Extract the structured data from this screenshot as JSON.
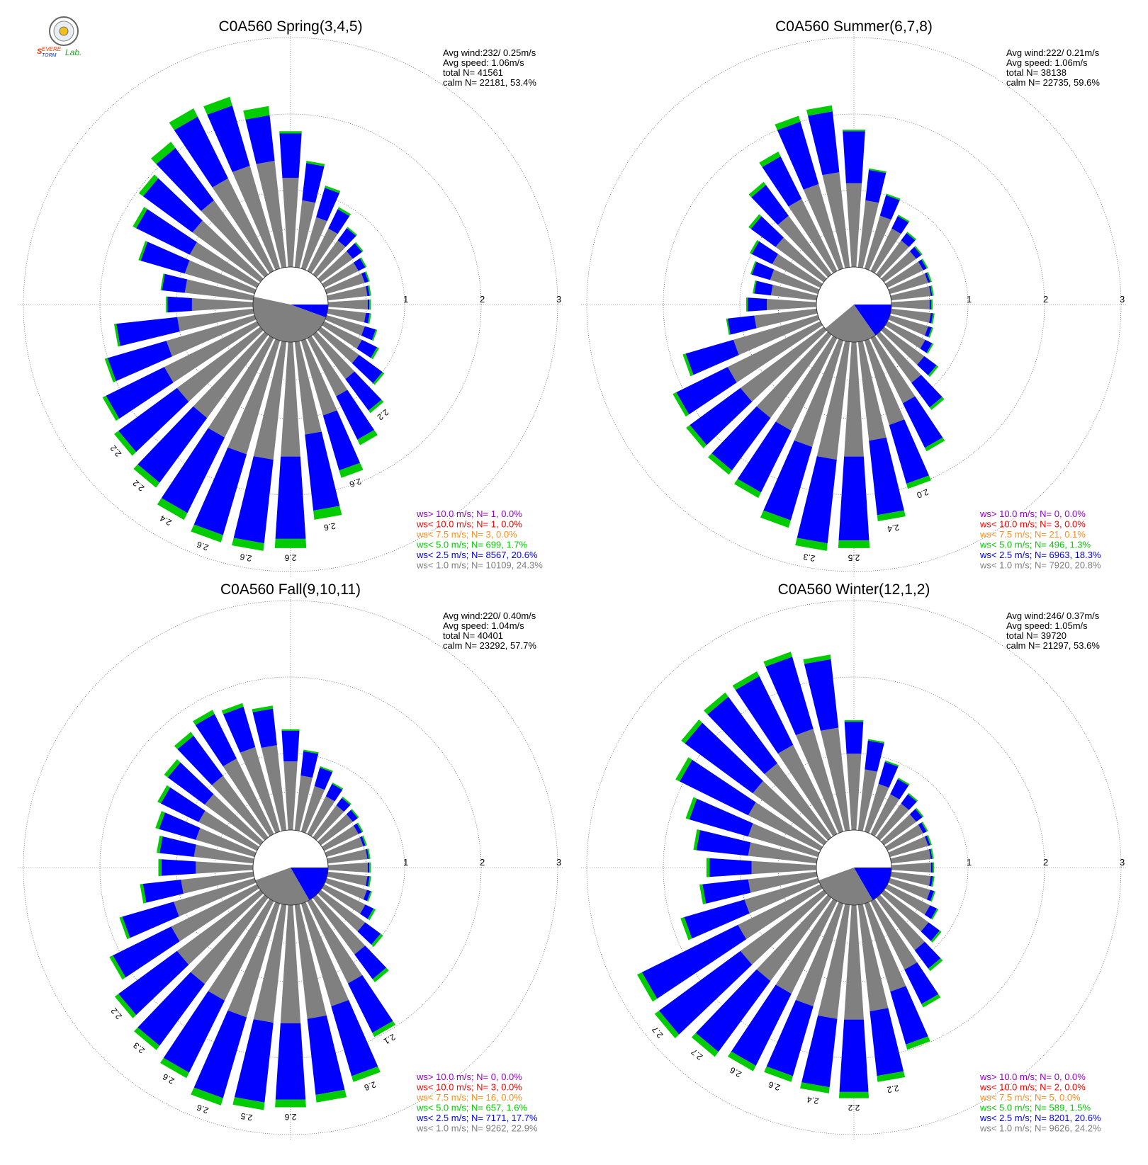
{
  "logo": {
    "text": "SEVERE STORM Lab.",
    "colors": {
      "severe": "#ff3300",
      "storm": "#0033cc",
      "lab": "#22aa22"
    }
  },
  "colors": {
    "calm": "#808080",
    "bins": [
      "#808080",
      "#0000ff",
      "#00cc00",
      "#ff8c1a",
      "#ff0000",
      "#9400d3"
    ],
    "grid": "#555555"
  },
  "chart_data": [
    {
      "type": "polar-bar",
      "title": "C0A560 Spring(3,4,5)",
      "rlim": [
        0,
        3
      ],
      "rticks": [
        "1",
        "2",
        "3"
      ],
      "stats": [
        "Avg wind:232/ 0.25m/s",
        "Avg speed: 1.06m/s",
        "total N=      41561",
        "calm N=  22181,  53.4%"
      ],
      "legend": [
        {
          "text": "ws> 10.0 m/s; N=     1,  0.0%",
          "color": "#9400d3"
        },
        {
          "text": "ws< 10.0 m/s; N=     1,  0.0%",
          "color": "#ff0000"
        },
        {
          "text": "ws<  7.5 m/s; N=     3,  0.0%",
          "color": "#ff8c1a"
        },
        {
          "text": "ws<  5.0 m/s; N=   699,  1.7%",
          "color": "#00cc00"
        },
        {
          "text": "ws<  2.5 m/s; N=  8567, 20.6%",
          "color": "#0000ff"
        },
        {
          "text": "ws<  1.0 m/s; N= 10109, 24.3%",
          "color": "#808080"
        }
      ],
      "calm_wedges": [
        {
          "from": 90,
          "to": 110,
          "color": "#0000ff"
        },
        {
          "from": 110,
          "to": 282,
          "color": "#808080"
        }
      ],
      "directions": [
        0,
        10,
        20,
        30,
        40,
        50,
        60,
        70,
        80,
        90,
        100,
        110,
        120,
        130,
        140,
        150,
        160,
        170,
        180,
        190,
        200,
        210,
        220,
        230,
        240,
        250,
        260,
        270,
        280,
        290,
        300,
        310,
        320,
        330,
        340,
        350
      ],
      "grey": [
        1.17,
        0.88,
        0.7,
        0.62,
        0.55,
        0.52,
        0.5,
        0.52,
        0.52,
        0.52,
        0.5,
        0.52,
        0.55,
        0.62,
        0.72,
        0.85,
        1.02,
        1.22,
        1.5,
        1.55,
        1.55,
        1.45,
        1.35,
        1.35,
        1.35,
        1.2,
        1.0,
        0.8,
        0.9,
        0.95,
        0.98,
        1.1,
        1.2,
        1.35,
        1.4,
        1.4
      ],
      "blue": [
        0.58,
        0.49,
        0.4,
        0.28,
        0.2,
        0.15,
        0.1,
        0.05,
        0.03,
        0.02,
        0.05,
        0.15,
        0.22,
        0.38,
        0.51,
        0.63,
        0.75,
        1.0,
        1.08,
        1.1,
        1.1,
        1.1,
        1.05,
        0.95,
        0.85,
        0.8,
        0.8,
        0.32,
        0.3,
        0.6,
        0.78,
        0.8,
        0.85,
        0.9,
        0.82,
        0.6
      ],
      "green": [
        0.03,
        0.03,
        0.03,
        0.03,
        0.02,
        0.02,
        0.02,
        0.02,
        0.02,
        0.02,
        0.02,
        0.02,
        0.03,
        0.03,
        0.04,
        0.08,
        0.1,
        0.12,
        0.12,
        0.1,
        0.1,
        0.1,
        0.08,
        0.07,
        0.05,
        0.04,
        0.03,
        0.02,
        0.02,
        0.03,
        0.05,
        0.07,
        0.1,
        0.12,
        0.12,
        0.12
      ],
      "bar_labels": [
        {
          "dir": 140,
          "text": "2.2"
        },
        {
          "dir": 160,
          "text": "2.6"
        },
        {
          "dir": 170,
          "text": "2.6"
        },
        {
          "dir": 180,
          "text": "2.6"
        },
        {
          "dir": 190,
          "text": "2.6"
        },
        {
          "dir": 200,
          "text": "2.6"
        },
        {
          "dir": 210,
          "text": "2.4"
        },
        {
          "dir": 220,
          "text": "2.2"
        },
        {
          "dir": 230,
          "text": "2.2"
        }
      ]
    },
    {
      "type": "polar-bar",
      "title": "C0A560 Summer(6,7,8)",
      "rlim": [
        0,
        3
      ],
      "rticks": [
        "1",
        "2",
        "3"
      ],
      "stats": [
        "Avg wind:222/ 0.21m/s",
        "Avg speed: 1.06m/s",
        "total N=      38138",
        "calm N=  22735,  59.6%"
      ],
      "legend": [
        {
          "text": "ws> 10.0 m/s; N=     0,  0.0%",
          "color": "#9400d3"
        },
        {
          "text": "ws< 10.0 m/s; N=     3,  0.0%",
          "color": "#ff0000"
        },
        {
          "text": "ws<  7.5 m/s; N=    21,  0.1%",
          "color": "#ff8c1a"
        },
        {
          "text": "ws<  5.0 m/s; N=   496,  1.3%",
          "color": "#00cc00"
        },
        {
          "text": "ws<  2.5 m/s; N=  6963, 18.3%",
          "color": "#0000ff"
        },
        {
          "text": "ws<  1.0 m/s; N=  7920, 20.8%",
          "color": "#808080"
        }
      ],
      "calm_wedges": [
        {
          "from": 90,
          "to": 145,
          "color": "#0000ff"
        },
        {
          "from": 145,
          "to": 230,
          "color": "#808080"
        }
      ],
      "directions": [
        0,
        10,
        20,
        30,
        40,
        50,
        60,
        70,
        80,
        90,
        100,
        110,
        120,
        130,
        140,
        150,
        160,
        170,
        180,
        190,
        200,
        210,
        220,
        230,
        240,
        250,
        260,
        270,
        280,
        290,
        300,
        310,
        320,
        330,
        340,
        350
      ],
      "grey": [
        1.1,
        0.88,
        0.72,
        0.62,
        0.55,
        0.52,
        0.52,
        0.52,
        0.52,
        0.5,
        0.52,
        0.52,
        0.55,
        0.65,
        0.78,
        0.95,
        1.15,
        1.3,
        1.5,
        1.55,
        1.45,
        1.35,
        1.35,
        1.35,
        1.35,
        1.15,
        0.82,
        0.65,
        0.6,
        0.65,
        0.7,
        0.78,
        0.95,
        1.05,
        1.15,
        1.25
      ],
      "blue": [
        0.68,
        0.4,
        0.28,
        0.18,
        0.12,
        0.08,
        0.05,
        0.03,
        0.02,
        0.02,
        0.03,
        0.05,
        0.1,
        0.2,
        0.4,
        0.65,
        0.8,
        0.98,
        1.1,
        1.1,
        1.0,
        0.9,
        0.85,
        0.82,
        0.75,
        0.65,
        0.35,
        0.25,
        0.22,
        0.25,
        0.3,
        0.4,
        0.5,
        0.62,
        0.85,
        0.8
      ],
      "green": [
        0.02,
        0.02,
        0.02,
        0.02,
        0.02,
        0.02,
        0.02,
        0.02,
        0.02,
        0.02,
        0.02,
        0.02,
        0.02,
        0.03,
        0.04,
        0.05,
        0.07,
        0.08,
        0.1,
        0.1,
        0.1,
        0.08,
        0.07,
        0.06,
        0.05,
        0.04,
        0.02,
        0.02,
        0.02,
        0.02,
        0.03,
        0.04,
        0.05,
        0.07,
        0.08,
        0.08
      ],
      "bar_labels": [
        {
          "dir": 160,
          "text": "2.0"
        },
        {
          "dir": 170,
          "text": "2.4"
        },
        {
          "dir": 180,
          "text": "2.5"
        },
        {
          "dir": 190,
          "text": "2.3"
        }
      ]
    },
    {
      "type": "polar-bar",
      "title": "C0A560 Fall(9,10,11)",
      "rlim": [
        0,
        3
      ],
      "rticks": [
        "1",
        "2",
        "3"
      ],
      "stats": [
        "Avg wind:220/ 0.40m/s",
        "Avg speed: 1.04m/s",
        "total N=      40401",
        "calm N=  23292,  57.7%"
      ],
      "legend": [
        {
          "text": "ws> 10.0 m/s; N=     0,  0.0%",
          "color": "#9400d3"
        },
        {
          "text": "ws< 10.0 m/s; N=     3,  0.0%",
          "color": "#ff0000"
        },
        {
          "text": "ws<  7.5 m/s; N=    16,  0.0%",
          "color": "#ff8c1a"
        },
        {
          "text": "ws<  5.0 m/s; N=   657,  1.6%",
          "color": "#00cc00"
        },
        {
          "text": "ws<  2.5 m/s; N=  7171, 17.7%",
          "color": "#0000ff"
        },
        {
          "text": "ws<  1.0 m/s; N=  9262, 22.9%",
          "color": "#808080"
        }
      ],
      "calm_wedges": [
        {
          "from": 90,
          "to": 150,
          "color": "#0000ff"
        },
        {
          "from": 150,
          "to": 250,
          "color": "#808080"
        }
      ],
      "directions": [
        0,
        10,
        20,
        30,
        40,
        50,
        60,
        70,
        80,
        90,
        100,
        110,
        120,
        130,
        140,
        150,
        160,
        170,
        180,
        190,
        200,
        210,
        220,
        230,
        240,
        250,
        260,
        270,
        280,
        290,
        300,
        310,
        320,
        330,
        340,
        350
      ],
      "grey": [
        0.9,
        0.72,
        0.62,
        0.55,
        0.52,
        0.52,
        0.5,
        0.5,
        0.52,
        0.52,
        0.52,
        0.55,
        0.6,
        0.72,
        0.92,
        1.2,
        1.4,
        1.5,
        1.55,
        1.55,
        1.55,
        1.45,
        1.4,
        1.35,
        1.25,
        1.1,
        0.95,
        0.75,
        0.78,
        0.8,
        0.85,
        0.9,
        1.0,
        1.1,
        1.15,
        1.12
      ],
      "blue": [
        0.4,
        0.32,
        0.25,
        0.18,
        0.12,
        0.08,
        0.05,
        0.03,
        0.02,
        0.02,
        0.03,
        0.05,
        0.12,
        0.25,
        0.4,
        0.72,
        0.95,
        1.0,
        1.0,
        1.05,
        1.1,
        1.05,
        1.0,
        0.95,
        0.85,
        0.7,
        0.5,
        0.45,
        0.45,
        0.5,
        0.55,
        0.6,
        0.65,
        0.65,
        0.55,
        0.48
      ],
      "green": [
        0.02,
        0.02,
        0.02,
        0.02,
        0.02,
        0.02,
        0.02,
        0.02,
        0.02,
        0.02,
        0.02,
        0.02,
        0.03,
        0.04,
        0.05,
        0.06,
        0.08,
        0.1,
        0.1,
        0.1,
        0.1,
        0.08,
        0.07,
        0.06,
        0.05,
        0.04,
        0.04,
        0.04,
        0.04,
        0.05,
        0.05,
        0.06,
        0.06,
        0.06,
        0.05,
        0.04
      ],
      "bar_labels": [
        {
          "dir": 150,
          "text": "2.1"
        },
        {
          "dir": 160,
          "text": "2.6"
        },
        {
          "dir": 180,
          "text": "2.6"
        },
        {
          "dir": 190,
          "text": "2.5"
        },
        {
          "dir": 200,
          "text": "2.6"
        },
        {
          "dir": 210,
          "text": "2.6"
        },
        {
          "dir": 220,
          "text": "2.3"
        },
        {
          "dir": 230,
          "text": "2.2"
        }
      ]
    },
    {
      "type": "polar-bar",
      "title": "C0A560 Winter(12,1,2)",
      "rlim": [
        0,
        3
      ],
      "rticks": [
        "1",
        "2",
        "3"
      ],
      "stats": [
        "Avg wind:246/ 0.37m/s",
        "Avg speed: 1.05m/s",
        "total N=      39720",
        "calm N=  21297,  53.6%"
      ],
      "legend": [
        {
          "text": "ws> 10.0 m/s; N=     0,  0.0%",
          "color": "#9400d3"
        },
        {
          "text": "ws< 10.0 m/s; N=     2,  0.0%",
          "color": "#ff0000"
        },
        {
          "text": "ws<  7.5 m/s; N=     5,  0.0%",
          "color": "#ff8c1a"
        },
        {
          "text": "ws<  5.0 m/s; N=   589,  1.5%",
          "color": "#00cc00"
        },
        {
          "text": "ws<  2.5 m/s; N=  8201, 20.6%",
          "color": "#0000ff"
        },
        {
          "text": "ws<  1.0 m/s; N=  9626, 24.2%",
          "color": "#808080"
        }
      ],
      "calm_wedges": [
        {
          "from": 90,
          "to": 150,
          "color": "#0000ff"
        },
        {
          "from": 150,
          "to": 250,
          "color": "#808080"
        }
      ],
      "directions": [
        0,
        10,
        20,
        30,
        40,
        50,
        60,
        70,
        80,
        90,
        100,
        110,
        120,
        130,
        140,
        150,
        160,
        170,
        180,
        190,
        200,
        210,
        220,
        230,
        240,
        250,
        260,
        270,
        280,
        290,
        300,
        310,
        320,
        330,
        340,
        350
      ],
      "grey": [
        1.0,
        0.8,
        0.65,
        0.58,
        0.55,
        0.52,
        0.52,
        0.52,
        0.52,
        0.52,
        0.52,
        0.55,
        0.62,
        0.72,
        0.85,
        1.0,
        1.2,
        1.4,
        1.5,
        1.5,
        1.4,
        1.35,
        1.35,
        1.35,
        1.2,
        1.0,
        0.9,
        0.85,
        0.9,
        0.95,
        1.05,
        1.15,
        1.2,
        1.3,
        1.4,
        1.35
      ],
      "blue": [
        0.42,
        0.38,
        0.3,
        0.22,
        0.15,
        0.1,
        0.05,
        0.03,
        0.02,
        0.02,
        0.03,
        0.05,
        0.1,
        0.18,
        0.3,
        0.5,
        0.72,
        0.85,
        0.95,
        0.9,
        0.95,
        1.05,
        1.15,
        1.32,
        1.4,
        0.82,
        0.6,
        0.55,
        0.68,
        0.8,
        1.0,
        1.1,
        1.08,
        1.0,
        0.98,
        0.9
      ],
      "green": [
        0.02,
        0.02,
        0.02,
        0.02,
        0.02,
        0.02,
        0.02,
        0.02,
        0.02,
        0.02,
        0.02,
        0.02,
        0.02,
        0.03,
        0.04,
        0.05,
        0.07,
        0.08,
        0.08,
        0.08,
        0.08,
        0.08,
        0.08,
        0.07,
        0.07,
        0.05,
        0.04,
        0.04,
        0.04,
        0.05,
        0.06,
        0.06,
        0.07,
        0.07,
        0.07,
        0.06
      ],
      "bar_labels": [
        {
          "dir": 170,
          "text": "2.2"
        },
        {
          "dir": 180,
          "text": "2.2"
        },
        {
          "dir": 190,
          "text": "2.4"
        },
        {
          "dir": 200,
          "text": "2.6"
        },
        {
          "dir": 210,
          "text": "2.6"
        },
        {
          "dir": 220,
          "text": "2.7"
        },
        {
          "dir": 230,
          "text": "2.7"
        }
      ]
    }
  ]
}
